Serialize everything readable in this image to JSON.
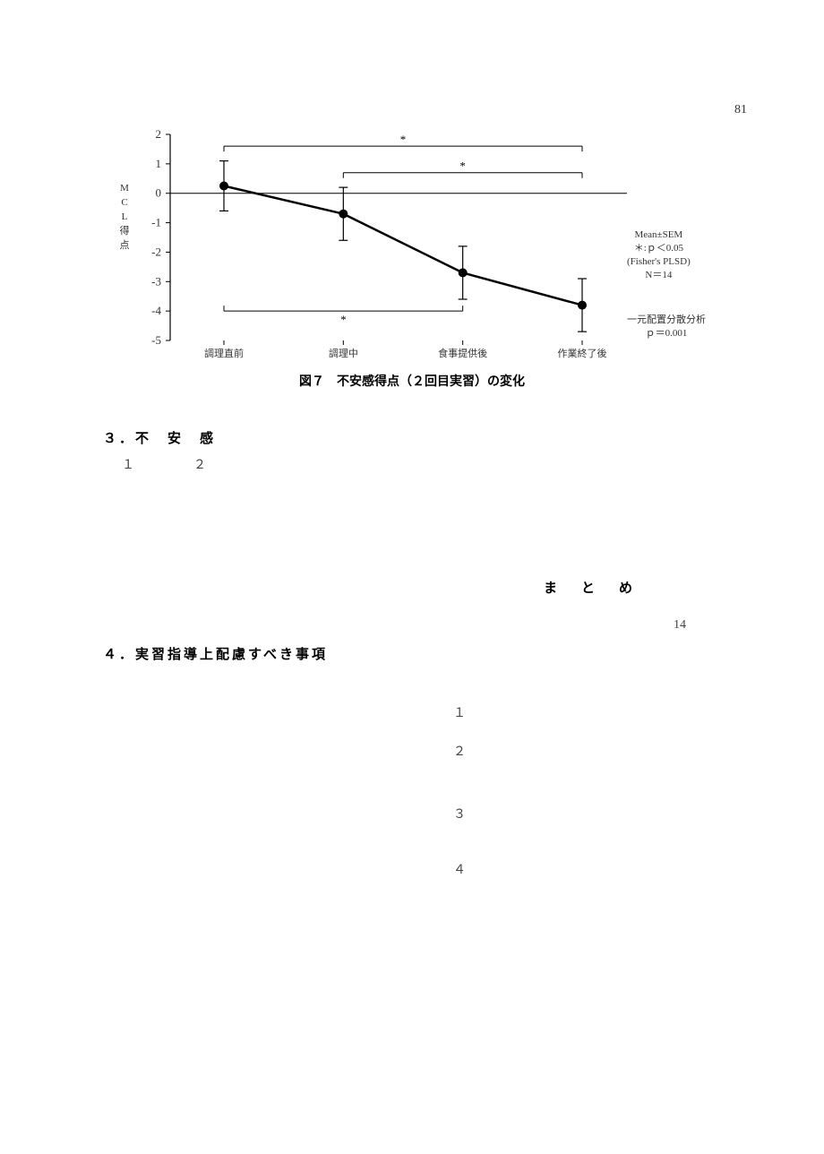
{
  "page_number": "81",
  "chart": {
    "type": "line",
    "categories": [
      "調理直前",
      "調理中",
      "食事提供後",
      "作業終了後"
    ],
    "values": [
      0.25,
      -0.7,
      -2.7,
      -3.8
    ],
    "error_bars": [
      0.85,
      0.9,
      0.9,
      0.9
    ],
    "line_color": "#000000",
    "marker_color": "#000000",
    "marker_style": "circle",
    "marker_size": 5,
    "line_width": 2.5,
    "ylim": [
      -5,
      2
    ],
    "ytick_step": 1,
    "yticks": [
      -5,
      -4,
      -3,
      -2,
      -1,
      0,
      1,
      2
    ],
    "x_positions": [
      0,
      1,
      2,
      3
    ],
    "background_color": "#ffffff",
    "axis_color": "#000000",
    "zero_line": true,
    "ylabel_chars": [
      "M",
      "C",
      "L",
      "得",
      "点"
    ],
    "significance_brackets": [
      {
        "from": 0,
        "to": 3,
        "y": 1.6,
        "label": "*"
      },
      {
        "from": 1,
        "to": 3,
        "y": 0.7,
        "label": "*"
      },
      {
        "from": 0,
        "to": 2,
        "y": -4.0,
        "label": "*",
        "below": true
      }
    ],
    "title_fontsize": 14,
    "tick_fontsize": 12
  },
  "caption": "図７　不安感得点（２回目実習）の変化",
  "stats_box_1": {
    "lines": [
      "Mean±SEM",
      "＊:ｐ＜0.05",
      "(Fisher's PLSD)",
      "N＝14"
    ]
  },
  "stats_box_2": {
    "lines": [
      "一元配置分散分析",
      "ｐ＝0.001"
    ]
  },
  "sections": {
    "three": "３．不　安　感",
    "four": "４．実習指導上配慮すべき事項",
    "summary": "ま　と　め"
  },
  "body_numbers": {
    "n1": "１",
    "n2": "２",
    "n14": "14",
    "list1": "１",
    "list2": "２",
    "list3": "３",
    "list4": "４"
  }
}
